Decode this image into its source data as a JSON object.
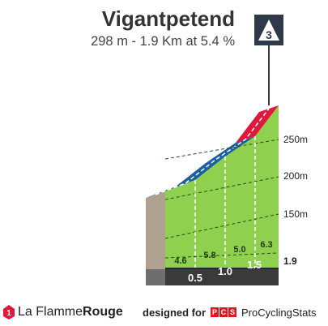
{
  "header": {
    "title": "Vigantpetend",
    "subtitle": "298 m - 1.9 Km at 5.4 %"
  },
  "category_badge": "3",
  "colors": {
    "gradient_4_6": "#1a5fa0",
    "gradient_6_9": "#e0183c",
    "slope_fill": "#8fd14f",
    "base_band": "#3a3a3a",
    "side_wall": "#b0a090",
    "badge_bg": "#2e3a4a"
  },
  "altitude_axis": {
    "labels": [
      "250m",
      "200m",
      "150m"
    ],
    "base_label": "1.9"
  },
  "segments": [
    {
      "gradient": "4.6",
      "km_mark": "0.5"
    },
    {
      "gradient": "5.8",
      "km_mark": "1.0"
    },
    {
      "gradient": "5.0",
      "km_mark": "1.5"
    },
    {
      "gradient": "6.3",
      "km_mark": ""
    }
  ],
  "footer": {
    "brand_logo_icon": "flamme-rouge-logo-icon",
    "brand_prefix": "La Flamme",
    "brand_suffix": "Rouge",
    "designed_for": "designed for",
    "pcs_logo_letters": [
      "P",
      "C",
      "S"
    ],
    "pcs_name": "ProCyclingStats"
  }
}
